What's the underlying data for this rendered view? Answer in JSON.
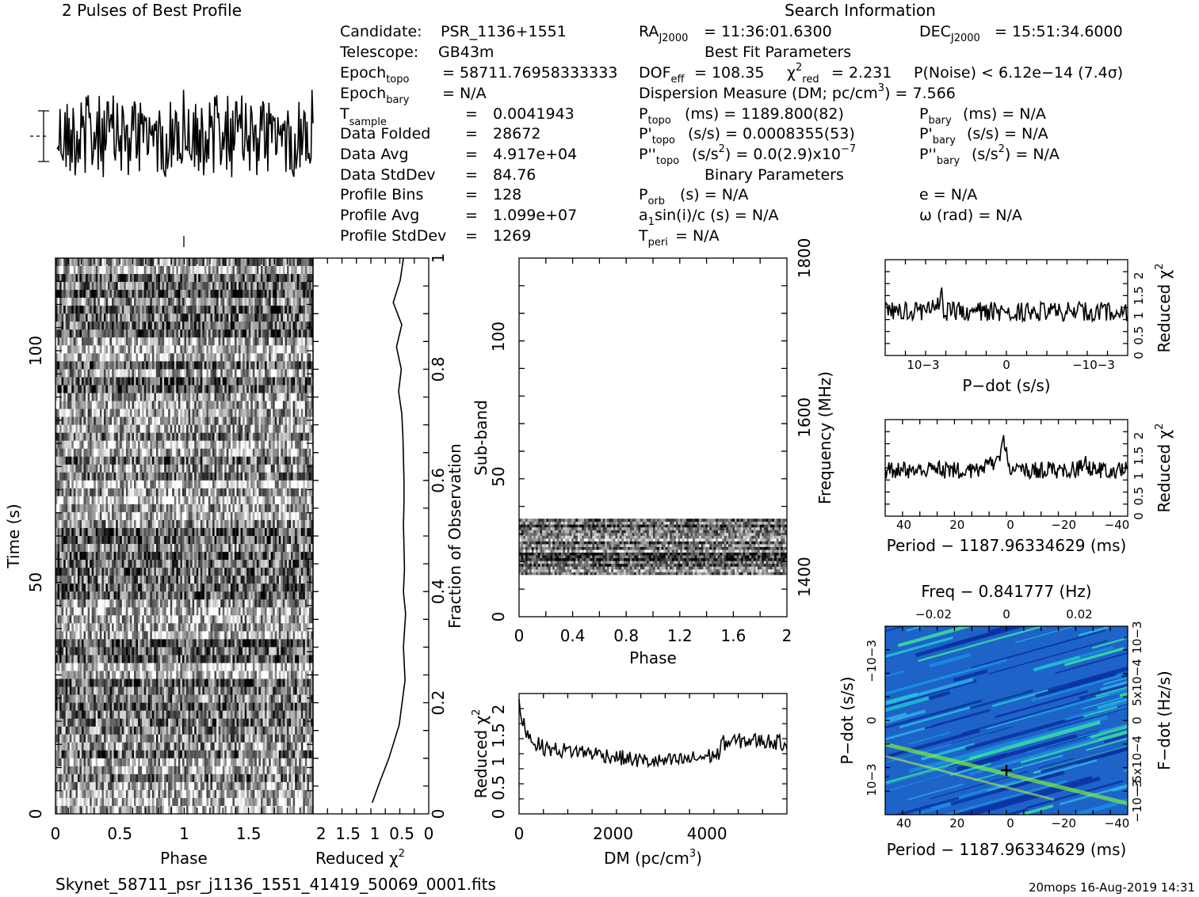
{
  "title": {
    "profile": "2 Pulses of Best Profile",
    "search": "Search Information",
    "best_fit": "Best Fit Parameters",
    "binary": "Binary Parameters",
    "filename": "Skynet_58711_psr_j1136_1551_41419_50069_0001.fits",
    "footer": "20mops 16-Aug-2019 14:31"
  },
  "info": {
    "candidate_label": "Candidate:",
    "candidate": "PSR_1136+1551",
    "telescope_label": "Telescope:",
    "telescope": "GB43m",
    "epoch_topo": "= 58711.76958333333",
    "epoch_bary": "= N/A",
    "t_sample_label": "T",
    "t_sample_sub": "sample",
    "t_sample": "0.0041943",
    "data_folded_label": "Data Folded",
    "data_folded": "28672",
    "data_avg_label": "Data Avg",
    "data_avg": "4.917e+04",
    "data_std_label": "Data StdDev",
    "data_std": "84.76",
    "prof_bins_label": "Profile Bins",
    "prof_bins": "128",
    "prof_avg_label": "Profile Avg",
    "prof_avg": "1.099e+07",
    "prof_std_label": "Profile StdDev",
    "prof_std": "1269",
    "eq": "="
  },
  "search": {
    "ra": "= 11:36:01.6300",
    "dec": "= 15:51:34.6000",
    "dof": "= 108.35",
    "chi2": "= 2.231",
    "pnoise": "P(Noise) < 6.12e−14  (7.4σ)",
    "dm": "Dispersion Measure (DM; pc/cm",
    "dm_val": ") = 7.566",
    "ptopo": "(ms) =  1189.800(82)",
    "pbary": "(ms) = N/A",
    "pdtopo": "(s/s) =  0.0008355(53)",
    "pdbary": "(s/s) = N/A",
    "pddtopo": "(s/s",
    "pddtopo_val": ") = 0.0(2.9)x10",
    "pddtopo_exp": "−7",
    "pddbary": "(s/s",
    "pddbary_val": ") = N/A",
    "porb": "(s) = N/A",
    "e": "e = N/A",
    "a1": "sin(i)/c (s) = N/A",
    "omega": "ω (rad) = N/A",
    "tperi": "= N/A"
  },
  "axes": {
    "phase": "Phase",
    "time": "Time (s)",
    "reduced_chi2": "Reduced χ",
    "fraction": "Fraction of Observation",
    "subband": "Sub-band",
    "frequency": "Frequency (MHz)",
    "dm": "DM (pc/cm",
    "pdot": "P−dot (s/s)",
    "period": "Period − 1187.96334629 (ms)",
    "freq": "Freq − 0.841777 (Hz)",
    "fdot": "F−dot (Hz/s)"
  },
  "chart_data": [
    {
      "type": "line",
      "name": "profile",
      "title": "2 Pulses of Best Profile",
      "xlim": [
        0,
        2
      ],
      "bins": 128
    },
    {
      "type": "heatmap",
      "name": "time-phase",
      "xlabel": "Phase",
      "ylabel": "Time (s)",
      "xlim": [
        0,
        2
      ],
      "ylim": [
        0,
        120
      ],
      "xticks": [
        "0",
        "0.5",
        "1",
        "1.5"
      ],
      "yticks": [
        "0",
        "50",
        "100"
      ]
    },
    {
      "type": "line",
      "name": "reduced-chi2-vs-time",
      "xlabel": "Reduced χ2",
      "xticks": [
        "2",
        "1.5",
        "1",
        "0.5",
        "0"
      ],
      "y2label": "Fraction of Observation",
      "y2ticks": [
        "0",
        "0.2",
        "0.4",
        "0.6",
        "0.8",
        "1"
      ],
      "x": [
        0.47,
        0.53,
        0.66,
        0.5,
        0.6,
        0.51,
        0.56,
        0.5,
        0.48,
        0.47,
        0.46,
        0.46,
        0.47,
        0.46,
        0.45,
        0.47,
        0.43,
        0.47,
        0.44,
        0.55,
        0.74,
        0.9,
        1.05
      ],
      "y": [
        1.0,
        0.96,
        0.92,
        0.88,
        0.84,
        0.8,
        0.76,
        0.72,
        0.68,
        0.64,
        0.6,
        0.56,
        0.52,
        0.48,
        0.44,
        0.4,
        0.36,
        0.3,
        0.24,
        0.16,
        0.1,
        0.06,
        0.02
      ]
    },
    {
      "type": "heatmap",
      "name": "subband-phase",
      "xlabel": "Phase",
      "ylabel": "Sub-band",
      "y2label": "Frequency (MHz)",
      "xlim": [
        0,
        2
      ],
      "ylim": [
        0,
        128
      ],
      "xticks": [
        "0",
        "0.4",
        "0.8",
        "1.2",
        "1.6",
        "2"
      ],
      "yticks": [
        "0",
        "50",
        "100"
      ],
      "y2ticks": [
        "1400",
        "1600",
        "1800"
      ],
      "active_subbands": [
        15,
        35
      ]
    },
    {
      "type": "line",
      "name": "chi2-vs-dm",
      "xlabel": "DM (pc/cm3)",
      "ylabel": "Reduced χ2",
      "xlim": [
        0,
        5700
      ],
      "xticks": [
        "0",
        "2000",
        "4000"
      ],
      "yticks": [
        "0",
        "0.5",
        "1",
        "1.5",
        "2"
      ]
    },
    {
      "type": "line",
      "name": "chi2-vs-pdot",
      "xlabel": "P−dot (s/s)",
      "ylabel": "Reduced χ2",
      "xticks": [
        "10−3",
        "0",
        "−10−3"
      ],
      "yticks": [
        "0",
        "0.5",
        "1",
        "1.5",
        "2"
      ]
    },
    {
      "type": "line",
      "name": "chi2-vs-period",
      "xlabel": "Period − 1187.96334629 (ms)",
      "ylabel": "Reduced χ2",
      "xticks": [
        "40",
        "20",
        "0",
        "−20",
        "−40"
      ],
      "yticks": [
        "0",
        "0.5",
        "1",
        "1.5",
        "2"
      ]
    },
    {
      "type": "heatmap",
      "name": "period-pdot",
      "xlabel": "Period − 1187.96334629 (ms)",
      "ylabel": "P−dot (s/s)",
      "x2label": "Freq − 0.841777 (Hz)",
      "y2label": "F−dot (Hz/s)",
      "xticks": [
        "40",
        "20",
        "0",
        "−20",
        "−40"
      ],
      "x2ticks": [
        "−0.02",
        "0",
        "0.02"
      ],
      "yticks": [
        "10−3",
        "0",
        "−10−3"
      ],
      "y2ticks": [
        "−10−3",
        "−5x10−4",
        "0",
        "5x10−4",
        "10−3"
      ]
    }
  ]
}
